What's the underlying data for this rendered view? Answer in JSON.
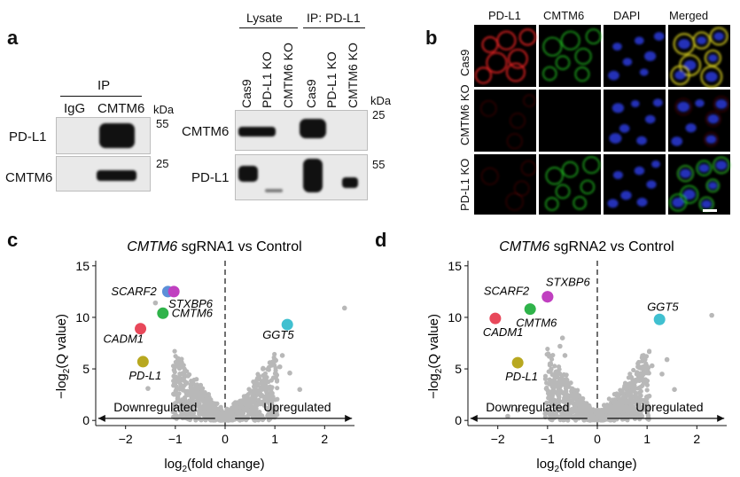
{
  "panel_labels": {
    "a": "a",
    "b": "b",
    "c": "c",
    "d": "d"
  },
  "blot_left": {
    "header": "IP",
    "lanes": [
      "IgG",
      "CMTM6"
    ],
    "unit": "kDa",
    "rows": [
      {
        "label": "PD-L1",
        "marker": "55"
      },
      {
        "label": "CMTM6",
        "marker": "25"
      }
    ]
  },
  "blot_right": {
    "groups": [
      "Lysate",
      "IP: PD-L1"
    ],
    "lanes": [
      "Cas9",
      "PD-L1 KO",
      "CMTM6 KO",
      "Cas9",
      "PD-L1 KO",
      "CMTM6 KO"
    ],
    "unit": "kDa",
    "rows": [
      {
        "label": "CMTM6",
        "marker": "25"
      },
      {
        "label": "PD-L1",
        "marker": "55"
      }
    ]
  },
  "microscopy": {
    "columns": [
      "PD-L1",
      "CMTM6",
      "DAPI",
      "Merged"
    ],
    "rows": [
      "Cas9",
      "CMTM6 KO",
      "PD-L1 KO"
    ],
    "colors": {
      "red": "#d42020",
      "green": "#22b822",
      "blue": "#2a3ad8",
      "merged": "#c8c020"
    }
  },
  "chart_data": [
    {
      "type": "scatter",
      "title_italic": "CMTM6",
      "title_rest": " sgRNA1 vs Control",
      "xlabel_pre": "log",
      "xlabel_sub": "2",
      "xlabel_post": "(fold change)",
      "ylabel_pre": "−log",
      "ylabel_sub": "2",
      "ylabel_post": "(Q value)",
      "xlim": [
        -2.6,
        2.6
      ],
      "ylim": [
        -0.5,
        15.5
      ],
      "xticks": [
        -2,
        -1,
        0,
        1,
        2
      ],
      "xtick_labels": [
        "−2",
        "−1",
        "0",
        "1",
        "2"
      ],
      "yticks": [
        0,
        5,
        10,
        15
      ],
      "ytick_labels": [
        "0",
        "5",
        "10",
        "15"
      ],
      "left_arrow_label": "Downregulated",
      "right_arrow_label": "Upregulated",
      "highlighted": [
        {
          "gene": "SCARF2",
          "x": -1.15,
          "y": 12.5,
          "color": "#5b8fd8"
        },
        {
          "gene": "STXBP6",
          "x": -1.03,
          "y": 12.5,
          "color": "#c040c0"
        },
        {
          "gene": "CMTM6",
          "x": -1.25,
          "y": 10.4,
          "color": "#2fb34a"
        },
        {
          "gene": "CADM1",
          "x": -1.7,
          "y": 8.9,
          "color": "#e8485a"
        },
        {
          "gene": "PD-L1",
          "x": -1.65,
          "y": 5.7,
          "color": "#b8a820"
        },
        {
          "gene": "GGT5",
          "x": 1.25,
          "y": 9.3,
          "color": "#40c0d0"
        }
      ],
      "outliers": [
        [
          2.4,
          10.9
        ],
        [
          -1.4,
          11.4
        ],
        [
          -1.3,
          10.2
        ],
        [
          -0.95,
          6.0
        ],
        [
          -0.9,
          5.5
        ],
        [
          -0.8,
          4.8
        ],
        [
          1.15,
          6.3
        ],
        [
          1.1,
          5.2
        ],
        [
          1.3,
          4.6
        ],
        [
          0.9,
          5.6
        ],
        [
          1.5,
          3.0
        ],
        [
          -1.55,
          3.1
        ]
      ]
    },
    {
      "type": "scatter",
      "title_italic": "CMTM6",
      "title_rest": " sgRNA2 vs Control",
      "xlabel_pre": "log",
      "xlabel_sub": "2",
      "xlabel_post": "(fold change)",
      "ylabel_pre": "−log",
      "ylabel_sub": "2",
      "ylabel_post": "(Q value)",
      "xlim": [
        -2.6,
        2.6
      ],
      "ylim": [
        -0.5,
        15.5
      ],
      "xticks": [
        -2,
        -1,
        0,
        1,
        2
      ],
      "xtick_labels": [
        "−2",
        "−1",
        "0",
        "1",
        "2"
      ],
      "yticks": [
        0,
        5,
        10,
        15
      ],
      "ytick_labels": [
        "0",
        "5",
        "10",
        "15"
      ],
      "left_arrow_label": "Downregulated",
      "right_arrow_label": "Upregulated",
      "highlighted": [
        {
          "gene": "STXBP6",
          "x": -1.0,
          "y": 12.0,
          "color": "#c040c0"
        },
        {
          "gene": "SCARF2",
          "x": -1.0,
          "y": 12.0,
          "color": "#c040c0"
        },
        {
          "gene": "CMTM6",
          "x": -1.35,
          "y": 10.8,
          "color": "#2fb34a"
        },
        {
          "gene": "CADM1",
          "x": -2.05,
          "y": 9.9,
          "color": "#e8485a"
        },
        {
          "gene": "PD-L1",
          "x": -1.6,
          "y": 5.6,
          "color": "#b8a820"
        },
        {
          "gene": "GGT5",
          "x": 1.25,
          "y": 9.8,
          "color": "#40c0d0"
        }
      ],
      "outliers": [
        [
          2.3,
          10.2
        ],
        [
          1.3,
          4.5
        ],
        [
          1.4,
          5.9
        ],
        [
          1.1,
          5.3
        ],
        [
          1.55,
          3.0
        ],
        [
          -0.7,
          8.0
        ],
        [
          -0.75,
          7.2
        ],
        [
          -0.65,
          6.3
        ],
        [
          0.95,
          4.6
        ],
        [
          -1.6,
          1.0
        ],
        [
          -1.8,
          0.4
        ]
      ]
    }
  ]
}
